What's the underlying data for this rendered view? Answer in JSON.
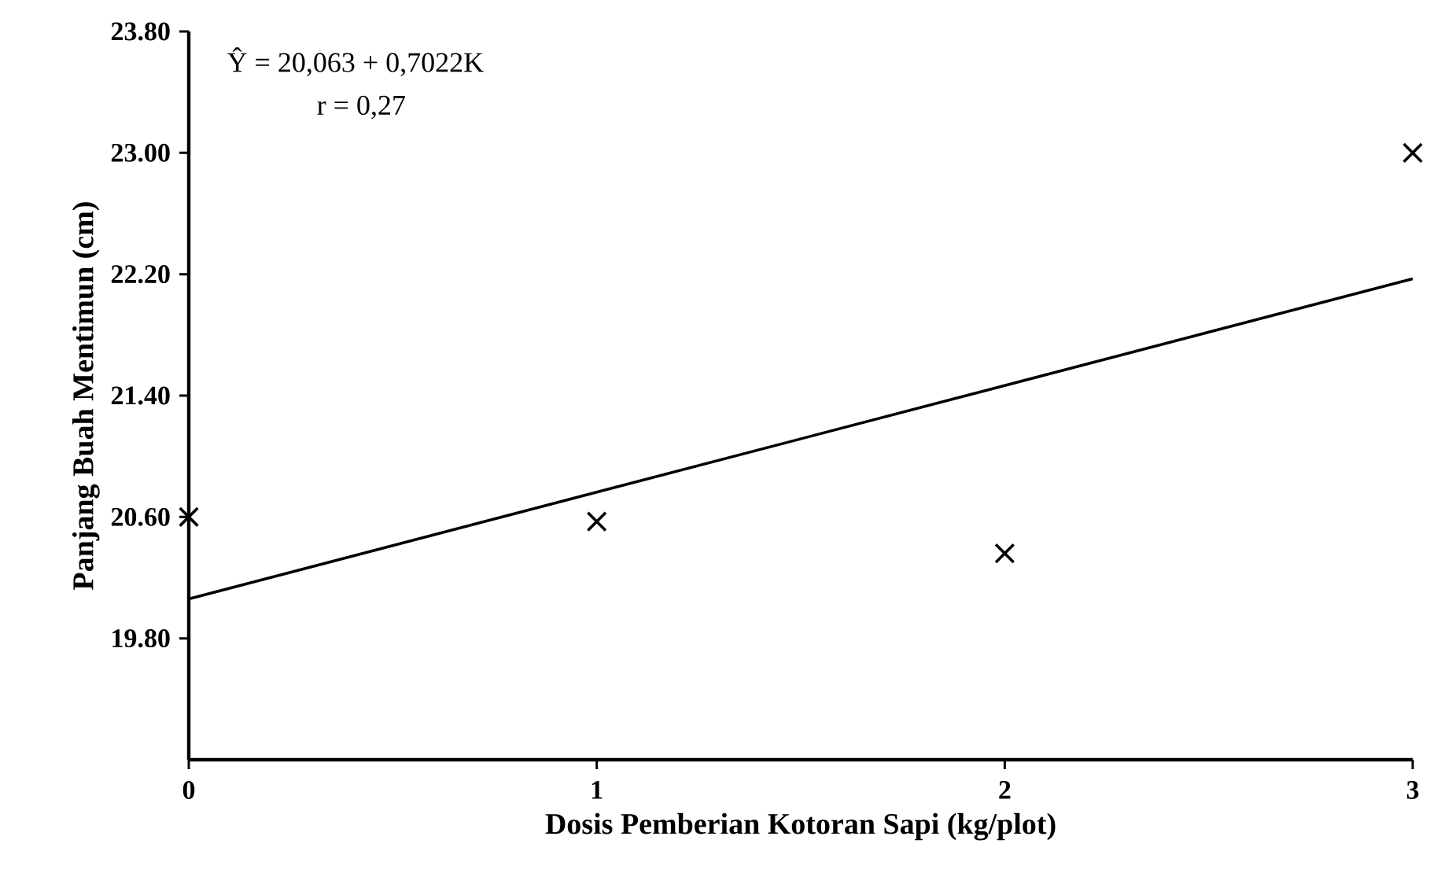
{
  "chart_data": {
    "type": "scatter",
    "xlabel": "Dosis Pemberian Kotoran Sapi (kg/plot)",
    "ylabel": "Panjang Buah Mentimun (cm)",
    "annotations": [
      "Ŷ =  20,063 + 0,7022K",
      "r = 0,27"
    ],
    "xlim": [
      0,
      3
    ],
    "xticks": [
      0,
      1,
      2,
      3
    ],
    "ylim": [
      19.0,
      23.8
    ],
    "yticks": [
      {
        "value": 19.8,
        "label": "19.80"
      },
      {
        "value": 20.6,
        "label": "20.60"
      },
      {
        "value": 21.4,
        "label": "21.40"
      },
      {
        "value": 22.2,
        "label": "22.20"
      },
      {
        "value": 23.0,
        "label": "23.00"
      },
      {
        "value": 23.8,
        "label": "23.80"
      }
    ],
    "marker": "cross",
    "series": [
      {
        "color": "#000000",
        "x": [
          0,
          1,
          2,
          3
        ],
        "values": [
          20.6,
          20.57,
          20.36,
          23.0
        ]
      },
      {
        "type": "line",
        "color": "#000000",
        "marker": "none",
        "x": [
          0,
          3
        ],
        "values": [
          20.06,
          22.17
        ]
      }
    ]
  }
}
